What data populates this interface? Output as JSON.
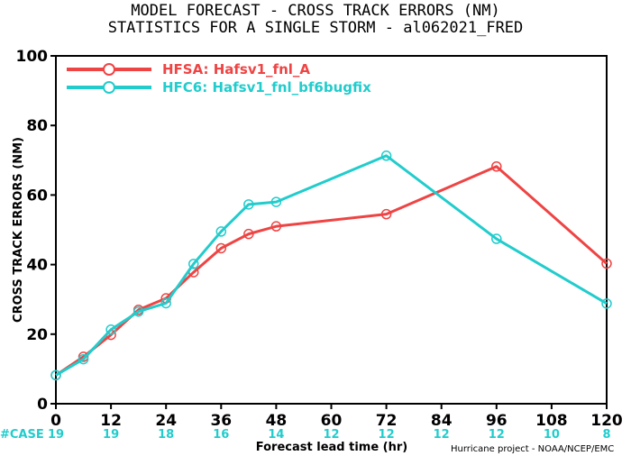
{
  "chart_data": {
    "type": "line",
    "title_line1": "MODEL FORECAST - CROSS TRACK ERRORS (NM)",
    "title_line2": "STATISTICS FOR A SINGLE STORM - al062021_FRED",
    "xlabel": "Forecast lead time (hr)",
    "ylabel": "CROSS TRACK ERRORS (NM)",
    "xlim": [
      0,
      120
    ],
    "ylim": [
      0,
      100
    ],
    "x_ticks": [
      0,
      12,
      24,
      36,
      48,
      60,
      72,
      84,
      96,
      108,
      120
    ],
    "y_ticks": [
      0,
      20,
      40,
      60,
      80,
      100
    ],
    "legend_position": "top-left",
    "series": [
      {
        "name": "HFSA: Hafsv1_fnl_A",
        "color": "#ee4444",
        "x": [
          0,
          6,
          12,
          18,
          24,
          30,
          36,
          42,
          48,
          72,
          96,
          120
        ],
        "y": [
          8.2,
          13.5,
          19.8,
          27.0,
          30.3,
          37.8,
          44.7,
          48.8,
          51.0,
          54.5,
          68.2,
          40.3
        ]
      },
      {
        "name": "HFC6: Hafsv1_fnl_bf6bugfix",
        "color": "#22cccc",
        "x": [
          0,
          6,
          12,
          18,
          24,
          30,
          36,
          42,
          48,
          72,
          96,
          120
        ],
        "y": [
          8.2,
          12.8,
          21.3,
          26.5,
          28.9,
          40.2,
          49.5,
          57.3,
          58.0,
          71.3,
          47.4,
          28.8
        ]
      }
    ],
    "case_label": "#CASE",
    "case_counts": [
      {
        "x": 0,
        "n": "19"
      },
      {
        "x": 12,
        "n": "19"
      },
      {
        "x": 24,
        "n": "18"
      },
      {
        "x": 36,
        "n": "16"
      },
      {
        "x": 48,
        "n": "14"
      },
      {
        "x": 60,
        "n": "12"
      },
      {
        "x": 72,
        "n": "12"
      },
      {
        "x": 84,
        "n": "12"
      },
      {
        "x": 96,
        "n": "12"
      },
      {
        "x": 108,
        "n": "10"
      },
      {
        "x": 120,
        "n": "8"
      }
    ],
    "credit": "Hurricane project - NOAA/NCEP/EMC"
  },
  "colors": {
    "axis": "#000000",
    "case_label": "#22cccc",
    "case_numbers": "#22cccc"
  }
}
